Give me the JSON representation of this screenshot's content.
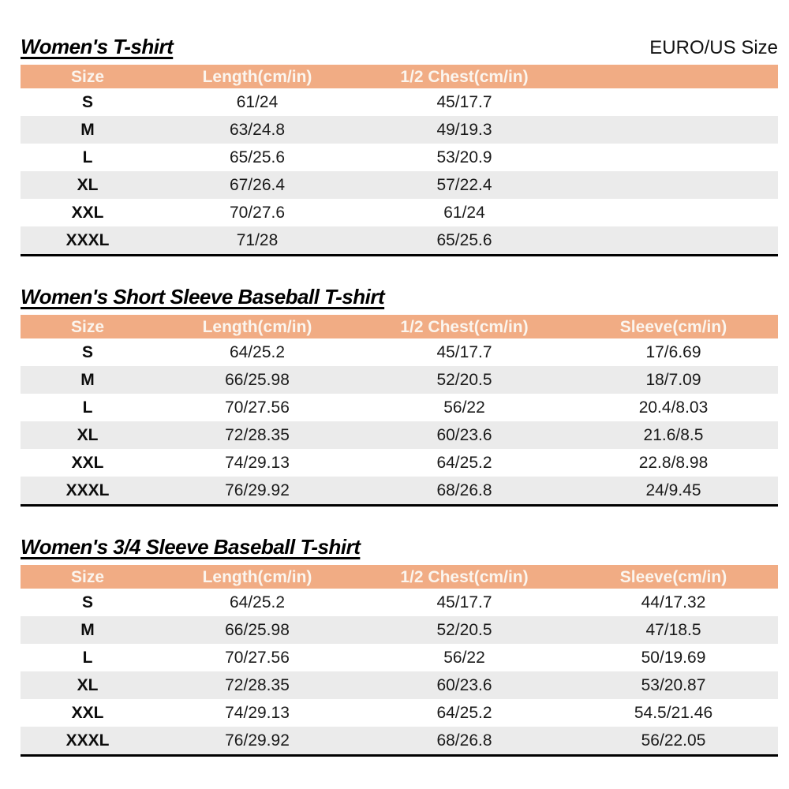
{
  "page": {
    "size_standard_label": "EURO/US Size"
  },
  "colors": {
    "header_bg": "#F1AC84",
    "header_text": "#FBF5EE",
    "row_alt_bg": "#EBEBEB",
    "row_bg": "#FFFFFF",
    "body_text": "#1A1A1A",
    "bottom_border": "#000000"
  },
  "tables": [
    {
      "title": "Women's T-shirt",
      "columns": [
        "Size",
        "Length(cm/in)",
        "1/2 Chest(cm/in)"
      ],
      "rows": [
        [
          "S",
          "61/24",
          "45/17.7"
        ],
        [
          "M",
          "63/24.8",
          "49/19.3"
        ],
        [
          "L",
          "65/25.6",
          "53/20.9"
        ],
        [
          "XL",
          "67/26.4",
          "57/22.4"
        ],
        [
          "XXL",
          "70/27.6",
          "61/24"
        ],
        [
          "XXXL",
          "71/28",
          "65/25.6"
        ]
      ]
    },
    {
      "title": "Women's Short Sleeve Baseball T-shirt",
      "columns": [
        "Size",
        "Length(cm/in)",
        "1/2 Chest(cm/in)",
        "Sleeve(cm/in)"
      ],
      "rows": [
        [
          "S",
          "64/25.2",
          "45/17.7",
          "17/6.69"
        ],
        [
          "M",
          "66/25.98",
          "52/20.5",
          "18/7.09"
        ],
        [
          "L",
          "70/27.56",
          "56/22",
          "20.4/8.03"
        ],
        [
          "XL",
          "72/28.35",
          "60/23.6",
          "21.6/8.5"
        ],
        [
          "XXL",
          "74/29.13",
          "64/25.2",
          "22.8/8.98"
        ],
        [
          "XXXL",
          "76/29.92",
          "68/26.8",
          "24/9.45"
        ]
      ]
    },
    {
      "title": "Women's 3/4 Sleeve Baseball T-shirt",
      "columns": [
        "Size",
        "Length(cm/in)",
        "1/2 Chest(cm/in)",
        "Sleeve(cm/in)"
      ],
      "rows": [
        [
          "S",
          "64/25.2",
          "45/17.7",
          "44/17.32"
        ],
        [
          "M",
          "66/25.98",
          "52/20.5",
          "47/18.5"
        ],
        [
          "L",
          "70/27.56",
          "56/22",
          "50/19.69"
        ],
        [
          "XL",
          "72/28.35",
          "60/23.6",
          "53/20.87"
        ],
        [
          "XXL",
          "74/29.13",
          "64/25.2",
          "54.5/21.46"
        ],
        [
          "XXXL",
          "76/29.92",
          "68/26.8",
          "56/22.05"
        ]
      ]
    }
  ]
}
